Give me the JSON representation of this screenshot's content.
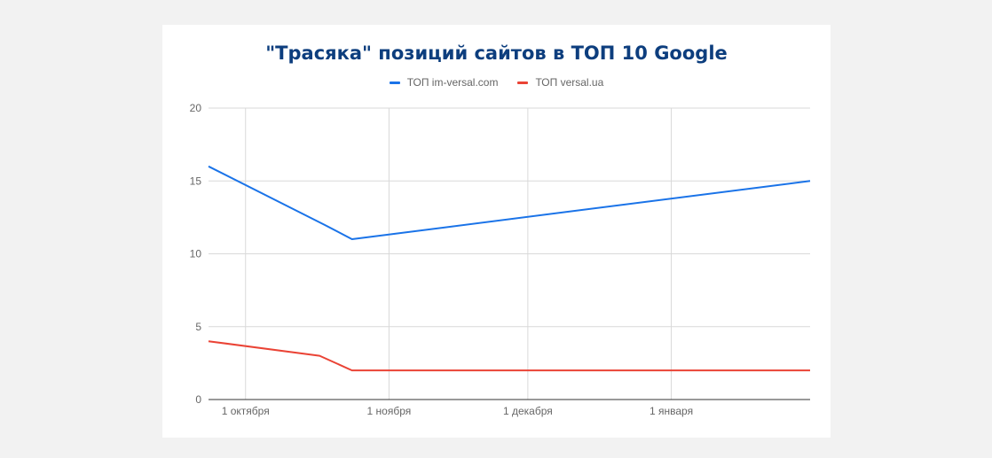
{
  "chart_data": {
    "type": "line",
    "title": "\"Трасяка\" позиций сайтов в ТОП 10 Google",
    "xlabel": "",
    "ylabel": "",
    "ylim": [
      0,
      20
    ],
    "yticks": [
      0,
      5,
      10,
      15,
      20
    ],
    "xlim": [
      "2018-09-23",
      "2019-01-31"
    ],
    "xticks": [
      {
        "date": "2018-10-01",
        "label": "1 октября"
      },
      {
        "date": "2018-11-01",
        "label": "1 ноября"
      },
      {
        "date": "2018-12-01",
        "label": "1 декабря"
      },
      {
        "date": "2019-01-01",
        "label": "1 января"
      }
    ],
    "grid": true,
    "legend_position": "top",
    "series": [
      {
        "name": "ТОП im-versal.com",
        "color": "#1a73e8",
        "points": [
          {
            "x": "2018-09-23",
            "y": 16
          },
          {
            "x": "2018-10-18",
            "y": 12
          },
          {
            "x": "2018-10-24",
            "y": 11
          },
          {
            "x": "2019-01-31",
            "y": 15
          }
        ]
      },
      {
        "name": "ТОП versal.ua",
        "color": "#ea4335",
        "points": [
          {
            "x": "2018-09-23",
            "y": 4
          },
          {
            "x": "2018-10-17",
            "y": 3
          },
          {
            "x": "2018-10-24",
            "y": 2
          },
          {
            "x": "2019-01-31",
            "y": 2
          }
        ]
      }
    ]
  }
}
